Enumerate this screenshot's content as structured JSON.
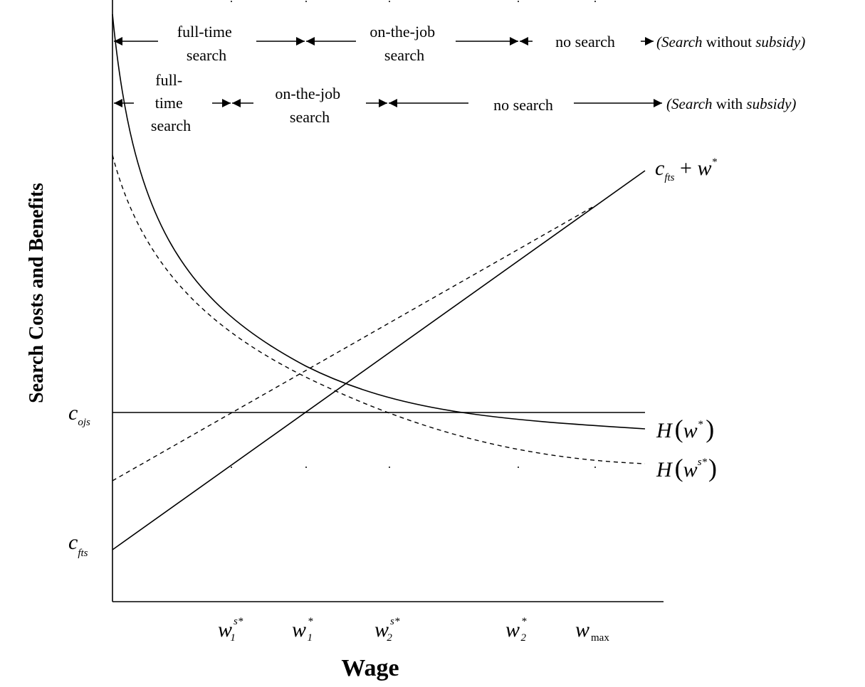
{
  "diagram": {
    "y_axis_title": "Search Costs and Benefits",
    "x_axis_title": "Wage",
    "regimes_without_subsidy": {
      "full_time_line1": "full-time",
      "full_time_line2": "search",
      "ojs_line1": "on-the-job",
      "ojs_line2": "search",
      "no_search": "no search",
      "label_open": "(",
      "label_search": "Search",
      "label_mid": " without ",
      "label_subsidy": "subsidy",
      "label_close": ")"
    },
    "regimes_with_subsidy": {
      "full_time_line1": "full-",
      "full_time_line2": "time",
      "full_time_line3": "search",
      "ojs_line1": "on-the-job",
      "ojs_line2": "search",
      "no_search": "no search",
      "label_open": "(",
      "label_search": "Search",
      "label_mid": " with ",
      "label_subsidy": "subsidy",
      "label_close": ")"
    },
    "y_labels": {
      "c_ojs_base": "c",
      "c_ojs_sub": "ojs",
      "c_fts_base": "c",
      "c_fts_sub": "fts"
    },
    "curve_labels": {
      "cost_line_base": "c",
      "cost_line_sub": "fts",
      "cost_line_plus": " + ",
      "cost_line_w": "w",
      "cost_line_star": "*",
      "h_base": "H",
      "h_w": "w",
      "h_star": "*",
      "hs_base": "H",
      "hs_w": "w",
      "hs_sup": "s*"
    },
    "x_ticks": {
      "w1s_base": "w",
      "w1s_sub": "1",
      "w1s_sup": "s*",
      "w1_base": "w",
      "w1_sub": "1",
      "w1_sup": "*",
      "w2s_base": "w",
      "w2s_sub": "2",
      "w2s_sup": "s*",
      "w2_base": "w",
      "w2_sub": "2",
      "w2_sup": "*",
      "wmax_base": "w",
      "wmax_sub": "max"
    }
  }
}
